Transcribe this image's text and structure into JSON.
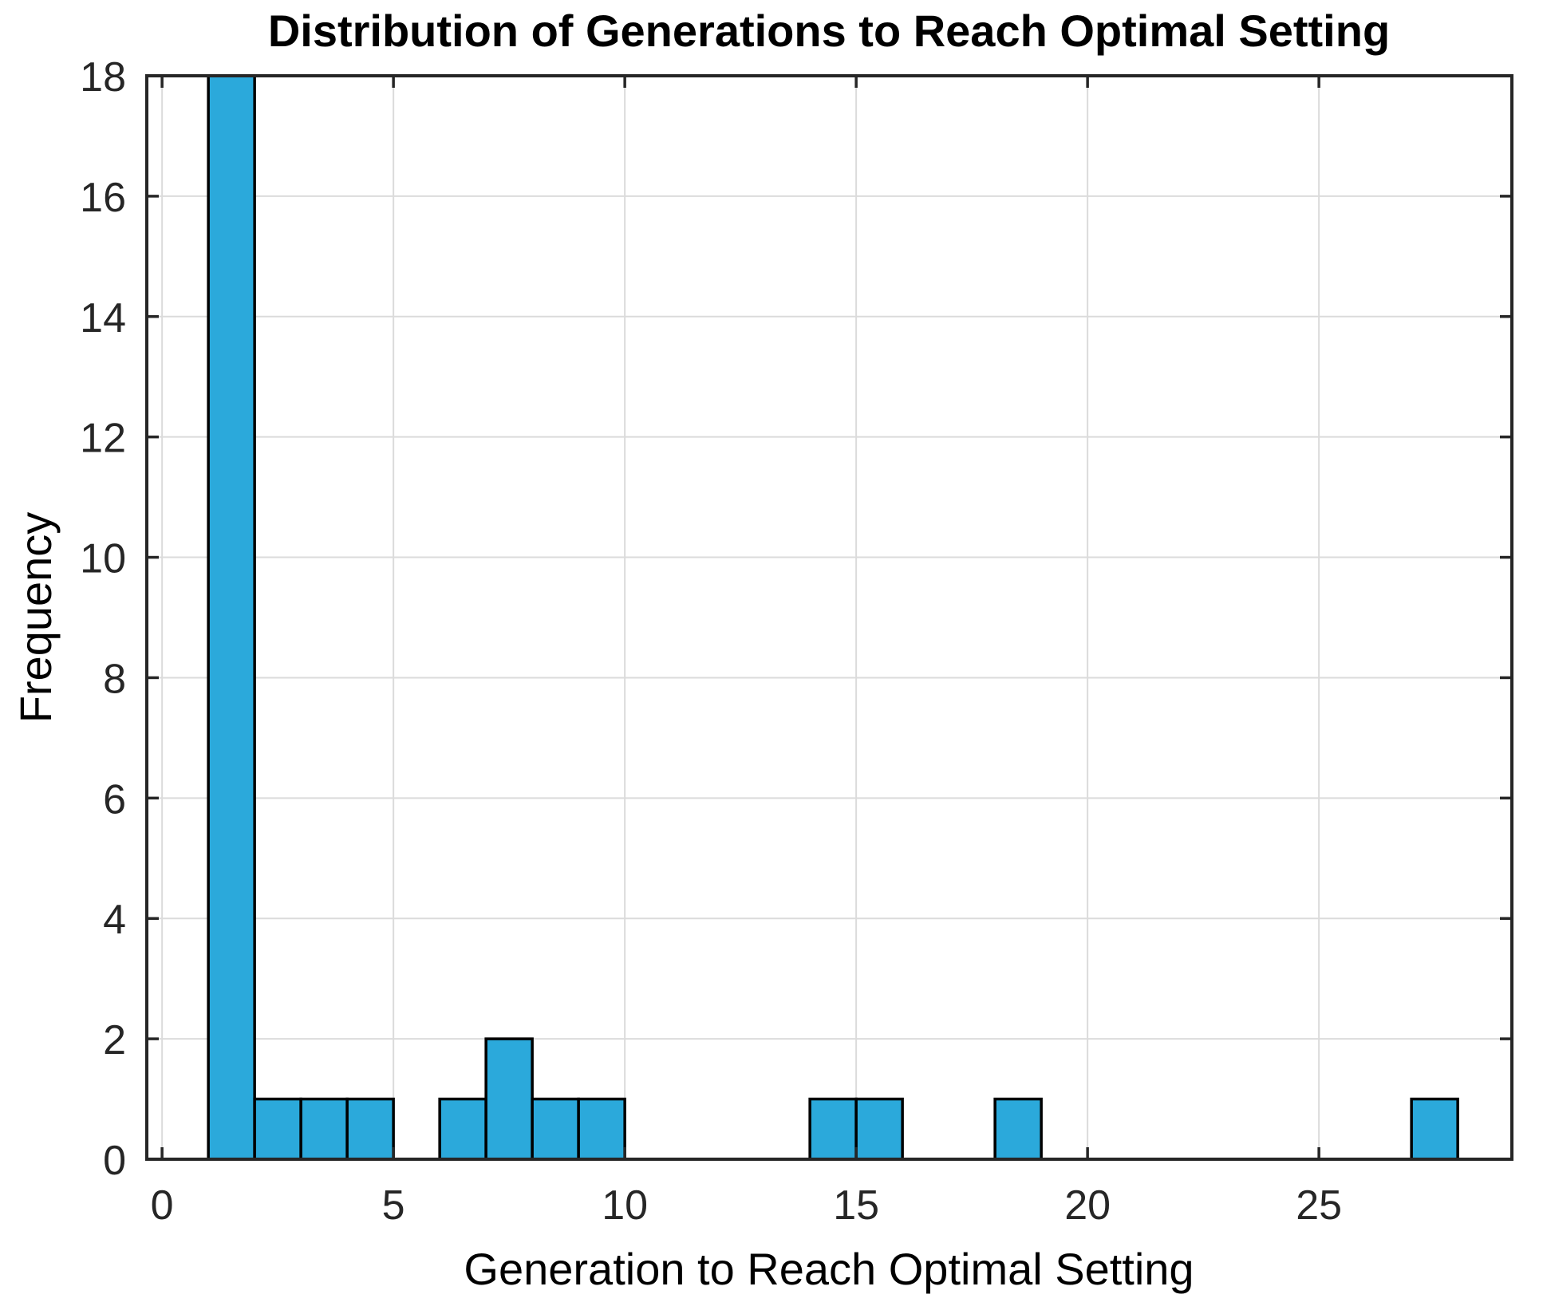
{
  "chart_data": {
    "type": "bar",
    "subtype": "histogram",
    "title": "Distribution of Generations to Reach Optimal Setting",
    "xlabel": "Generation to Reach Optimal Setting",
    "ylabel": "Frequency",
    "bins": [
      {
        "x0": 1,
        "x1": 2,
        "count": 18
      },
      {
        "x0": 2,
        "x1": 3,
        "count": 1
      },
      {
        "x0": 3,
        "x1": 4,
        "count": 1
      },
      {
        "x0": 4,
        "x1": 5,
        "count": 1
      },
      {
        "x0": 6,
        "x1": 7,
        "count": 1
      },
      {
        "x0": 7,
        "x1": 8,
        "count": 2
      },
      {
        "x0": 8,
        "x1": 9,
        "count": 1
      },
      {
        "x0": 9,
        "x1": 10,
        "count": 1
      },
      {
        "x0": 14,
        "x1": 15,
        "count": 1
      },
      {
        "x0": 15,
        "x1": 16,
        "count": 1
      },
      {
        "x0": 18,
        "x1": 19,
        "count": 1
      },
      {
        "x0": 27,
        "x1": 28,
        "count": 1
      }
    ],
    "xticks": [
      0,
      5,
      10,
      15,
      20,
      25
    ],
    "yticks": [
      0,
      2,
      4,
      6,
      8,
      10,
      12,
      14,
      16,
      18
    ],
    "xlim": [
      -0.33,
      29.17
    ],
    "ylim": [
      0,
      18
    ],
    "grid": true,
    "legend": null,
    "colors": {
      "bar_fill": "#2BA9DB",
      "bar_edge": "#000000",
      "axis": "#262626",
      "grid": "#DBDBDB",
      "tick_label": "#262626",
      "text": "#000000",
      "background": "#FFFFFF"
    }
  }
}
